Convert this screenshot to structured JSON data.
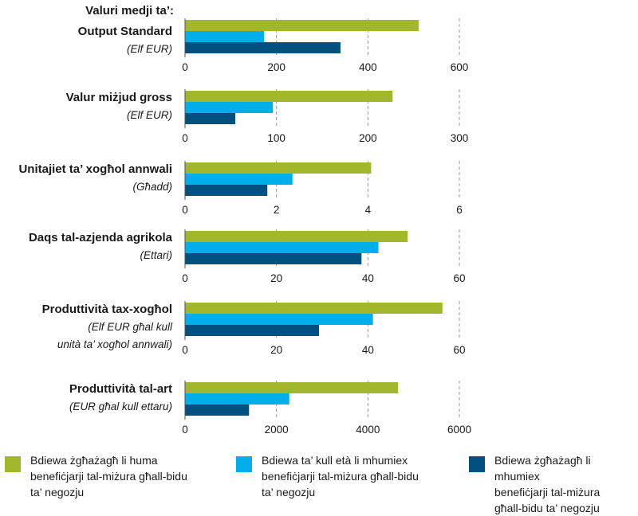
{
  "chart_data": {
    "type": "bar",
    "orientation": "horizontal",
    "heading": "Valuri medji ta’:",
    "series": [
      {
        "name": "Bdiewa żgħażagħ li huma benefiċjarji tal-miżura għall-bidu ta’ negozju",
        "color": "#a2b72b"
      },
      {
        "name": "Bdiewa ta’ kull età li mhumiex benefiċjarji tal-miżura għall-bidu ta’ negozju",
        "color": "#00aee9"
      },
      {
        "name": "Bdiewa żgħażagħ li mhumiex benefiċjarji tal-miżura għall-bidu ta’ negozju",
        "color": "#00517f"
      }
    ],
    "panels": [
      {
        "label": "Output Standard",
        "unit": "(Elf EUR)",
        "xlim": [
          0,
          600
        ],
        "ticks": [
          "0",
          "200",
          "400",
          "600"
        ],
        "tick_values": [
          0,
          200,
          400,
          600
        ],
        "values": [
          511,
          173,
          340
        ]
      },
      {
        "label": "Valur miżjud gross",
        "unit": "(Elf EUR)",
        "xlim": [
          0,
          300
        ],
        "ticks": [
          "0",
          "100",
          "200",
          "300"
        ],
        "tick_values": [
          0,
          100,
          200,
          300
        ],
        "values": [
          227,
          96,
          55
        ]
      },
      {
        "label": "Unitajiet ta’ xogħol annwali",
        "unit": "(Għadd)",
        "xlim": [
          0,
          6
        ],
        "ticks": [
          "0",
          "2",
          "4",
          "6"
        ],
        "tick_values": [
          0,
          2,
          4,
          6
        ],
        "values": [
          4.07,
          2.35,
          1.8
        ]
      },
      {
        "label": "Daqs tal-azjenda agrikola",
        "unit": "(Ettari)",
        "xlim": [
          0,
          60
        ],
        "ticks": [
          "0",
          "20",
          "40",
          "60"
        ],
        "tick_values": [
          0,
          20,
          40,
          60
        ],
        "values": [
          48.7,
          42.3,
          38.6
        ]
      },
      {
        "label": "Produttività tax-xogħol",
        "unit": "(Elf EUR għal kull unità ta’ xogħol annwali)",
        "unit_lines": [
          "(Elf EUR għal kull",
          "unità ta’ xogħol annwali)"
        ],
        "xlim": [
          0,
          60
        ],
        "ticks": [
          "0",
          "20",
          "40",
          "60"
        ],
        "tick_values": [
          0,
          20,
          40,
          60
        ],
        "values": [
          56.3,
          41.1,
          29.3
        ]
      },
      {
        "label": "Produttività tal-art",
        "unit": "(EUR għal kull ettaru)",
        "xlim": [
          0,
          6000
        ],
        "ticks": [
          "0",
          "2000",
          "4000",
          "6000"
        ],
        "tick_values": [
          0,
          2000,
          4000,
          6000
        ],
        "values": [
          4660,
          2280,
          1400
        ]
      }
    ]
  },
  "legend": {
    "items": [
      {
        "lines": [
          "Bdiewa żgħażagħ li huma",
          "benefiċjarji tal-miżura għall-bidu",
          "ta’ negozju"
        ],
        "color": "#a2b72b"
      },
      {
        "lines": [
          "Bdiewa ta’ kull età li mhumiex",
          "benefiċjarji tal-miżura għall-bidu",
          "ta’ negozju"
        ],
        "color": "#00aee9"
      },
      {
        "lines": [
          "Bdiewa żgħażagħ li mhumiex",
          "benefiċjarji tal-miżura",
          "għall-bidu ta’ negozju"
        ],
        "color": "#00517f"
      }
    ]
  }
}
